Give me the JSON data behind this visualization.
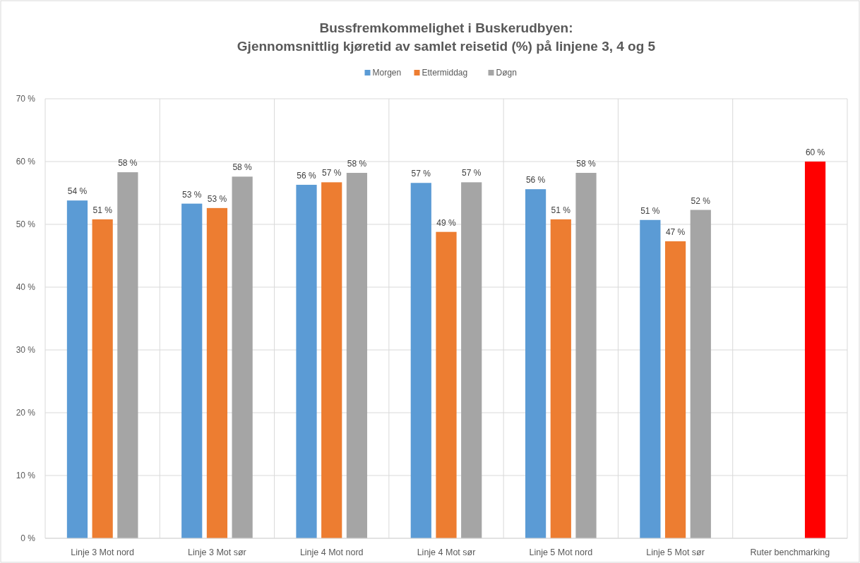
{
  "chart_data": {
    "type": "bar",
    "title": "Bussfremkommelighet i Buskerudbyen:\nGjennomsnittlig kjøretid av samlet reisetid (%) på linjene 3, 4 og 5",
    "categories": [
      "Linje 3 Mot nord",
      "Linje 3 Mot sør",
      "Linje 4 Mot nord",
      "Linje 4 Mot sør",
      "Linje 5 Mot nord",
      "Linje 5 Mot sør",
      "Ruter benchmarking"
    ],
    "series": [
      {
        "name": "Morgen",
        "color": "#5b9bd5",
        "values": [
          53.8,
          53.3,
          56.3,
          56.6,
          55.6,
          50.7,
          null
        ],
        "value_labels": [
          "54 %",
          "53 %",
          "56 %",
          "57 %",
          "56 %",
          "51 %",
          null
        ]
      },
      {
        "name": "Ettermiddag",
        "color": "#ed7d31",
        "values": [
          50.8,
          52.6,
          56.7,
          48.8,
          50.8,
          47.3,
          null
        ],
        "value_labels": [
          "51 %",
          "53 %",
          "57 %",
          "49 %",
          "51 %",
          "47 %",
          null
        ]
      },
      {
        "name": "Døgn",
        "color": "#a5a5a5",
        "colors": [
          "#a5a5a5",
          "#a5a5a5",
          "#a5a5a5",
          "#a5a5a5",
          "#a5a5a5",
          "#a5a5a5",
          "#ff0000"
        ],
        "values": [
          58.3,
          57.6,
          58.2,
          56.7,
          58.2,
          52.3,
          60
        ],
        "value_labels": [
          "58 %",
          "58 %",
          "58 %",
          "57 %",
          "58 %",
          "52 %",
          "60 %"
        ]
      }
    ],
    "ylim": [
      0,
      70
    ],
    "yticks": [
      {
        "value": 0,
        "label": "0 %"
      },
      {
        "value": 10,
        "label": "10 %"
      },
      {
        "value": 20,
        "label": "20 %"
      },
      {
        "value": 30,
        "label": "30 %"
      },
      {
        "value": 40,
        "label": "40 %"
      },
      {
        "value": 50,
        "label": "50 %"
      },
      {
        "value": 60,
        "label": "60 %"
      },
      {
        "value": 70,
        "label": "70 %"
      }
    ],
    "grid": true,
    "legend": "top"
  }
}
